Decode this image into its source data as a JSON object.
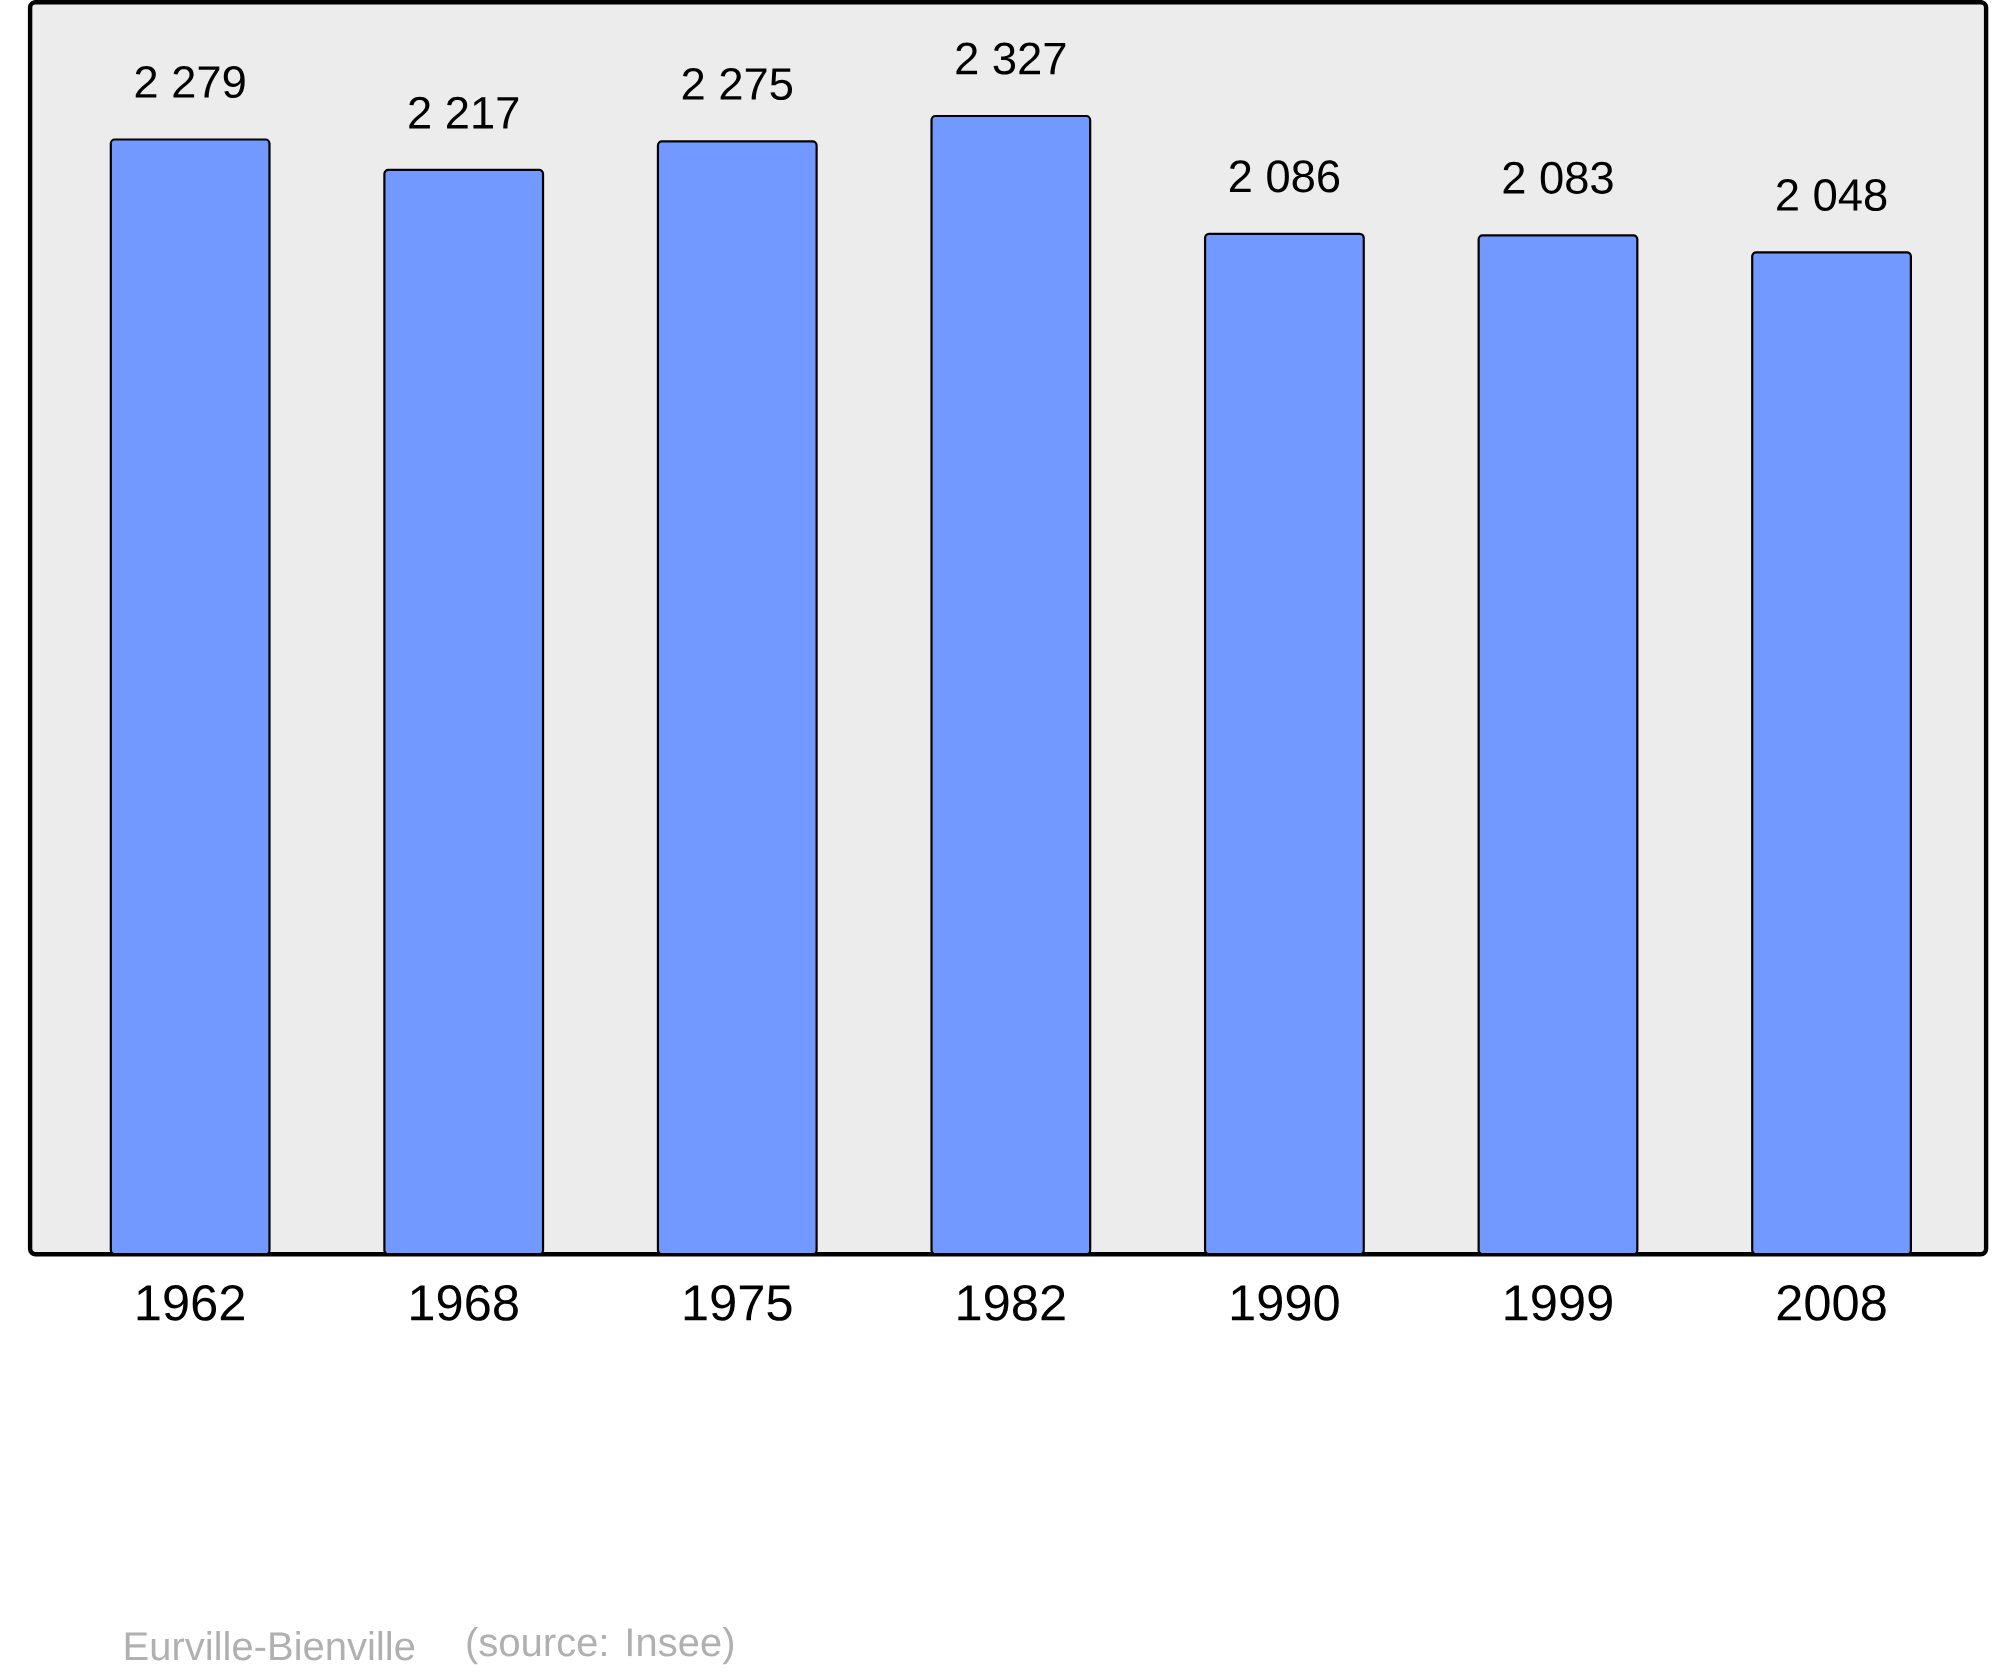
{
  "chart_data": {
    "type": "bar",
    "title": "Eurville-Bienville",
    "categories": [
      "1962",
      "1968",
      "1975",
      "1982",
      "1990",
      "1999",
      "2008"
    ],
    "values": [
      2279,
      2217,
      2275,
      2327,
      2086,
      2083,
      2048
    ],
    "value_labels": [
      "2 279",
      "2 217",
      "2 275",
      "2 327",
      "2 086",
      "2 083",
      "2 048"
    ],
    "color": "#7299ff",
    "annotations": [
      "(source: Insee)"
    ]
  }
}
